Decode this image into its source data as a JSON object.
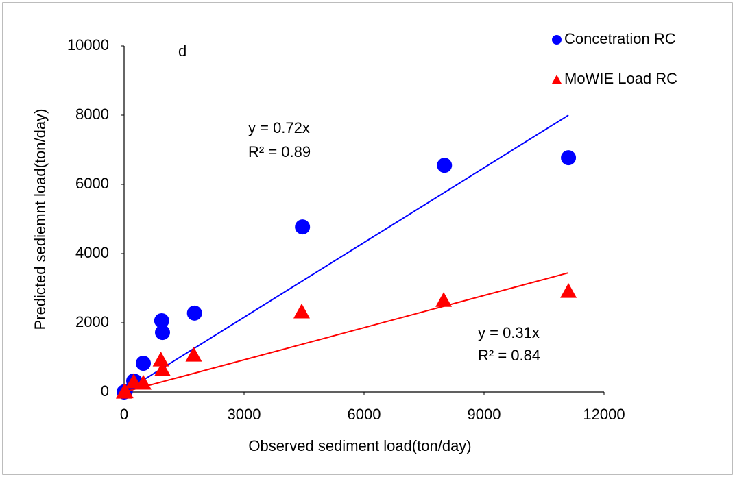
{
  "chart_data": {
    "type": "scatter",
    "annotation": "d",
    "x_label": "Observed sediment load(ton/day)",
    "y_label": "Predicted sediemnt load(ton/day)",
    "xlim": [
      0,
      12000
    ],
    "xticks": [
      0,
      3000,
      6000,
      9000,
      12000
    ],
    "ylim": [
      0,
      10000
    ],
    "yticks": [
      0,
      2000,
      4000,
      6000,
      8000,
      10000
    ],
    "legend": "top-right",
    "series": [
      {
        "name": "Concetration RC",
        "color": "#0000ff",
        "marker": "circle",
        "x": [
          0,
          30,
          240,
          280,
          480,
          940,
          960,
          1760,
          4460,
          8010,
          11110
        ],
        "values": [
          0,
          20,
          320,
          300,
          830,
          2060,
          1720,
          2280,
          4770,
          6550,
          6770
        ],
        "trendline": {
          "slope": 0.72,
          "label": "y = 0.72x",
          "r2_label": "R² = 0.89"
        }
      },
      {
        "name": "MoWIE Load RC",
        "color": "#ff0000",
        "marker": "triangle",
        "x": [
          0,
          30,
          240,
          480,
          920,
          960,
          1740,
          4440,
          7990,
          11110
        ],
        "values": [
          0,
          10,
          300,
          260,
          930,
          650,
          1070,
          2320,
          2650,
          2910
        ],
        "trendline": {
          "slope": 0.31,
          "label": "y = 0.31x",
          "r2_label": "R² = 0.84"
        }
      }
    ]
  }
}
